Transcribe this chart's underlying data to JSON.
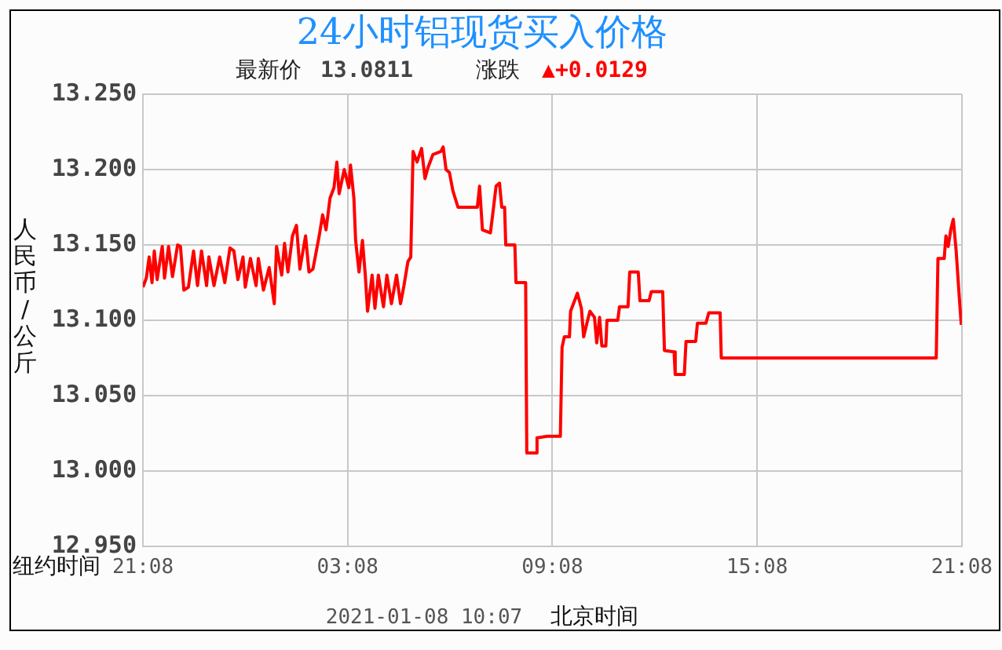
{
  "chart_data": {
    "type": "line",
    "title": "24小时铝现货买入价格",
    "subtitle": "最新价 13.0811",
    "xlabel": "纽约时间",
    "ylabel": "人民币/公斤",
    "annotations": [
      "涨跌",
      "▲+0.0129",
      "2021-01-08 10:07",
      "北京时间"
    ],
    "xlim": [
      "2021-01-06T21:08",
      "2021-01-07T21:08"
    ],
    "xticks": [
      {
        "value": "2021-01-06T21:08",
        "label": "21:08"
      },
      {
        "value": "2021-01-07T03:08",
        "label": "03:08"
      },
      {
        "value": "2021-01-07T09:08",
        "label": "09:08"
      },
      {
        "value": "2021-01-07T15:08",
        "label": "15:08"
      },
      {
        "value": "2021-01-07T21:08",
        "label": "21:08"
      }
    ],
    "ylim": [
      12.95,
      13.25
    ],
    "yticks": [
      {
        "value": 12.95,
        "label": "12.950"
      },
      {
        "value": 13.0,
        "label": "13.000"
      },
      {
        "value": 13.05,
        "label": "13.050"
      },
      {
        "value": 13.1,
        "label": "13.100"
      },
      {
        "value": 13.15,
        "label": "13.150"
      },
      {
        "value": 13.2,
        "label": "13.200"
      },
      {
        "value": 13.25,
        "label": "13.250"
      }
    ],
    "grid": true,
    "series": [
      {
        "color": "#ff0000",
        "x": [
          "2021-01-06T21:08",
          "2021-01-06T21:14",
          "2021-01-06T21:19",
          "2021-01-06T21:24",
          "2021-01-06T21:28",
          "2021-01-06T21:33",
          "2021-01-06T21:42",
          "2021-01-06T21:46",
          "2021-01-06T21:53",
          "2021-01-06T22:00",
          "2021-01-06T22:09",
          "2021-01-06T22:14",
          "2021-01-06T22:20",
          "2021-01-06T22:28",
          "2021-01-06T22:37",
          "2021-01-06T22:44",
          "2021-01-06T22:51",
          "2021-01-06T23:00",
          "2021-01-06T23:04",
          "2021-01-06T23:13",
          "2021-01-06T23:23",
          "2021-01-06T23:32",
          "2021-01-06T23:41",
          "2021-01-06T23:48",
          "2021-01-06T23:55",
          "2021-01-07T00:04",
          "2021-01-07T00:08",
          "2021-01-07T00:17",
          "2021-01-07T00:27",
          "2021-01-07T00:31",
          "2021-01-07T00:40",
          "2021-01-07T00:50",
          "2021-01-07T00:59",
          "2021-01-07T01:03",
          "2021-01-07T01:12",
          "2021-01-07T01:17",
          "2021-01-07T01:23",
          "2021-01-07T01:31",
          "2021-01-07T01:38",
          "2021-01-07T01:44",
          "2021-01-07T01:54",
          "2021-01-07T02:00",
          "2021-01-07T02:07",
          "2021-01-07T02:18",
          "2021-01-07T02:24",
          "2021-01-07T02:30",
          "2021-01-07T02:37",
          "2021-01-07T02:44",
          "2021-01-07T02:49",
          "2021-01-07T02:53",
          "2021-01-07T03:02",
          "2021-01-07T03:10",
          "2021-01-07T03:13",
          "2021-01-07T03:19",
          "2021-01-07T03:22",
          "2021-01-07T03:28",
          "2021-01-07T03:34",
          "2021-01-07T03:39",
          "2021-01-07T03:43",
          "2021-01-07T03:51",
          "2021-01-07T03:56",
          "2021-01-07T04:02",
          "2021-01-07T04:11",
          "2021-01-07T04:17",
          "2021-01-07T04:25",
          "2021-01-07T04:34",
          "2021-01-07T04:41",
          "2021-01-07T04:47",
          "2021-01-07T04:54",
          "2021-01-07T04:59",
          "2021-01-07T05:03",
          "2021-01-07T05:10",
          "2021-01-07T05:18",
          "2021-01-07T05:24",
          "2021-01-07T05:29",
          "2021-01-07T05:38",
          "2021-01-07T05:52",
          "2021-01-07T05:56",
          "2021-01-07T06:01",
          "2021-01-07T06:07",
          "2021-01-07T06:13",
          "2021-01-07T06:22",
          "2021-01-07T06:56",
          "2021-01-07T07:00",
          "2021-01-07T07:05",
          "2021-01-07T07:19",
          "2021-01-07T07:23",
          "2021-01-07T07:29",
          "2021-01-07T07:35",
          "2021-01-07T07:39",
          "2021-01-07T07:44",
          "2021-01-07T07:46",
          "2021-01-07T08:02",
          "2021-01-07T08:04",
          "2021-01-07T08:21",
          "2021-01-07T08:23",
          "2021-01-07T08:39",
          "2021-01-07T08:41",
          "2021-01-07T08:59",
          "2021-01-07T09:22",
          "2021-01-07T09:25",
          "2021-01-07T09:29",
          "2021-01-07T09:38",
          "2021-01-07T09:40",
          "2021-01-07T09:52",
          "2021-01-07T09:59",
          "2021-01-07T10:03",
          "2021-01-07T10:08",
          "2021-01-07T10:14",
          "2021-01-07T10:22",
          "2021-01-07T10:26",
          "2021-01-07T10:31",
          "2021-01-07T10:35",
          "2021-01-07T10:42",
          "2021-01-07T10:44",
          "2021-01-07T11:03",
          "2021-01-07T11:06",
          "2021-01-07T11:21",
          "2021-01-07T11:24",
          "2021-01-07T11:39",
          "2021-01-07T11:42",
          "2021-01-07T11:58",
          "2021-01-07T12:02",
          "2021-01-07T12:22",
          "2021-01-07T12:25",
          "2021-01-07T12:42",
          "2021-01-07T12:44",
          "2021-01-07T13:00",
          "2021-01-07T13:03",
          "2021-01-07T13:20",
          "2021-01-07T13:23",
          "2021-01-07T13:38",
          "2021-01-07T13:43",
          "2021-01-07T14:03",
          "2021-01-07T14:05",
          "2021-01-07T20:23",
          "2021-01-07T20:26",
          "2021-01-07T20:37",
          "2021-01-07T20:40",
          "2021-01-07T20:44",
          "2021-01-07T20:49",
          "2021-01-07T20:53",
          "2021-01-07T20:58",
          "2021-01-07T21:03",
          "2021-01-07T21:07"
        ],
        "values": [
          13.122,
          13.128,
          13.142,
          13.125,
          13.146,
          13.127,
          13.149,
          13.128,
          13.149,
          13.129,
          13.15,
          13.149,
          13.12,
          13.122,
          13.146,
          13.123,
          13.146,
          13.123,
          13.142,
          13.123,
          13.142,
          13.125,
          13.148,
          13.146,
          13.127,
          13.142,
          13.122,
          13.141,
          13.123,
          13.141,
          13.12,
          13.135,
          13.111,
          13.149,
          13.13,
          13.151,
          13.132,
          13.156,
          13.163,
          13.134,
          13.156,
          13.132,
          13.134,
          13.156,
          13.17,
          13.16,
          13.181,
          13.188,
          13.205,
          13.184,
          13.2,
          13.188,
          13.203,
          13.181,
          13.153,
          13.132,
          13.153,
          13.13,
          13.106,
          13.13,
          13.108,
          13.13,
          13.109,
          13.13,
          13.111,
          13.13,
          13.111,
          13.123,
          13.139,
          13.142,
          13.212,
          13.205,
          13.214,
          13.194,
          13.201,
          13.21,
          13.212,
          13.215,
          13.2,
          13.198,
          13.186,
          13.175,
          13.175,
          13.189,
          13.16,
          13.158,
          13.17,
          13.189,
          13.191,
          13.175,
          13.175,
          13.15,
          13.15,
          13.125,
          13.125,
          13.012,
          13.012,
          13.022,
          13.023,
          13.023,
          13.082,
          13.089,
          13.089,
          13.106,
          13.118,
          13.108,
          13.089,
          13.097,
          13.106,
          13.102,
          13.085,
          13.102,
          13.083,
          13.083,
          13.1,
          13.1,
          13.109,
          13.109,
          13.132,
          13.132,
          13.113,
          13.113,
          13.119,
          13.119,
          13.08,
          13.079,
          13.064,
          13.064,
          13.086,
          13.086,
          13.098,
          13.098,
          13.105,
          13.105,
          13.075,
          13.075,
          13.141,
          13.141,
          13.156,
          13.149,
          13.161,
          13.167,
          13.146,
          13.118,
          13.097
        ]
      }
    ]
  }
}
